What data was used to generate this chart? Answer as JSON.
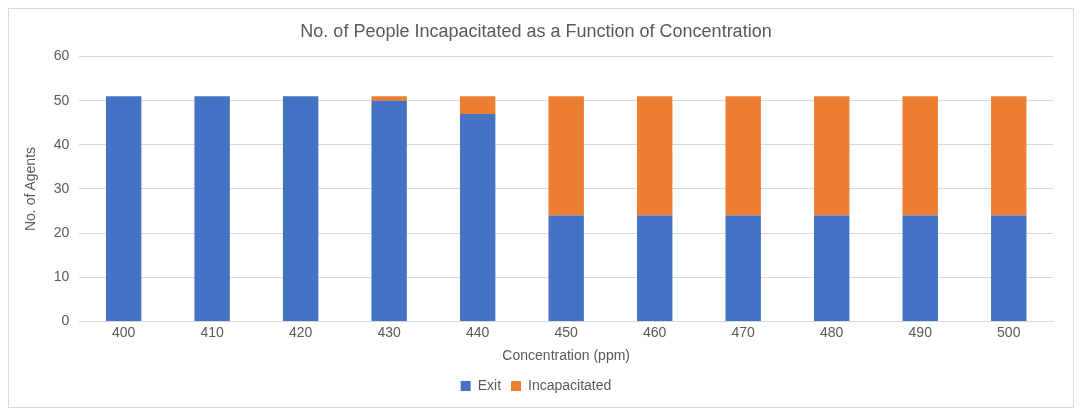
{
  "chart_data": {
    "type": "bar",
    "title": "No. of People Incapacitated as a Function of Concentration",
    "xlabel": "Concentration (ppm)",
    "ylabel": "No. of Agents",
    "categories": [
      "400",
      "410",
      "420",
      "430",
      "440",
      "450",
      "460",
      "470",
      "480",
      "490",
      "500"
    ],
    "series": [
      {
        "name": "Exit",
        "color": "#4472c4",
        "values": [
          51,
          51,
          51,
          50,
          47,
          24,
          24,
          24,
          24,
          24,
          24
        ]
      },
      {
        "name": "Incapacitated",
        "color": "#ed7d31",
        "values": [
          0,
          0,
          0,
          1,
          4,
          27,
          27,
          27,
          27,
          27,
          27
        ]
      }
    ],
    "stacked": true,
    "ylim": [
      0,
      60
    ],
    "yticks": [
      0,
      10,
      20,
      30,
      40,
      50,
      60
    ],
    "grid": "y",
    "legend": "bottom"
  }
}
